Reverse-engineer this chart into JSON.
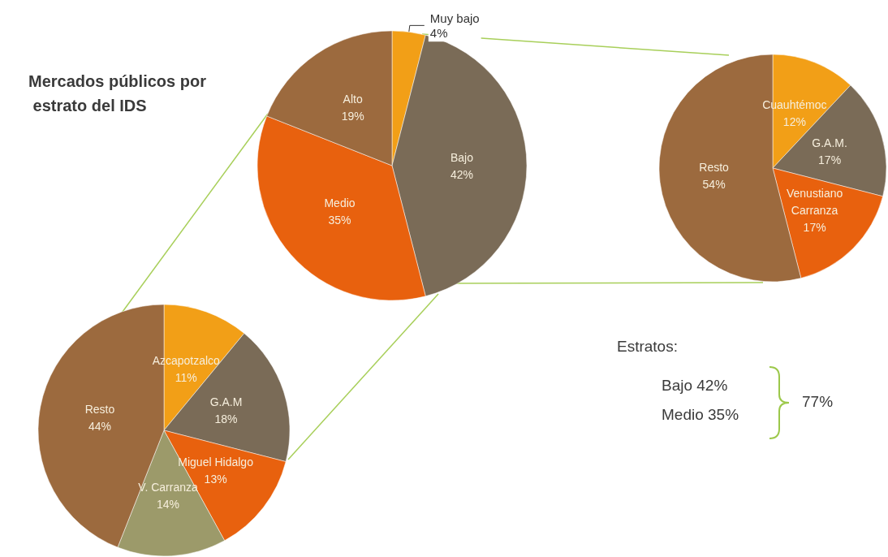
{
  "chart_data": [
    {
      "type": "pie",
      "title": "Mercados públicos por estrato del IDS",
      "categories": [
        "Muy bajo",
        "Bajo",
        "Medio",
        "Alto"
      ],
      "values": [
        4,
        42,
        35,
        19
      ],
      "value_labels": [
        "4%",
        "42%",
        "35%",
        "19%"
      ],
      "colors": [
        "#f29f17",
        "#7a6b57",
        "#e8610e",
        "#9c6a3e"
      ],
      "legend": false
    },
    {
      "type": "pie",
      "categories": [
        "Cuauhtémoc",
        "G.A.M.",
        "Venustiano Carranza",
        "Resto"
      ],
      "values": [
        12,
        17,
        17,
        54
      ],
      "value_labels": [
        "12%",
        "17%",
        "17%",
        "54%"
      ],
      "colors": [
        "#f29f17",
        "#7a6b57",
        "#e8610e",
        "#9c6a3e"
      ],
      "legend": false
    },
    {
      "type": "pie",
      "categories": [
        "Azcapotzalco",
        "G.A.M",
        "Miguel Hidalgo",
        "V. Carranza",
        "Resto"
      ],
      "values": [
        11,
        18,
        13,
        14,
        44
      ],
      "value_labels": [
        "11%",
        "18%",
        "13%",
        "14%",
        "44%"
      ],
      "colors": [
        "#f29f17",
        "#7a6b57",
        "#e8610e",
        "#9c9a6a",
        "#9c6a3e"
      ],
      "legend": false
    },
    {
      "type": "other",
      "annotations": [
        "Estratos:",
        "Bajo 42%",
        "Medio 35%",
        "77%"
      ]
    }
  ]
}
